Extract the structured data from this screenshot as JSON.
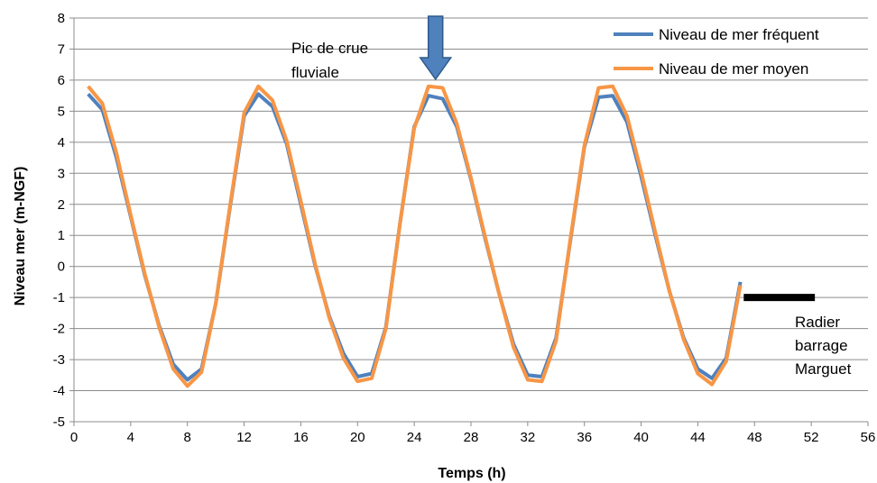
{
  "chart_data": {
    "type": "line",
    "xlabel": "Temps (h)",
    "ylabel": "Niveau mer (m-NGF)",
    "xlim": [
      0,
      56
    ],
    "ylim": [
      -5,
      8
    ],
    "x_ticks": [
      "0",
      "4",
      "8",
      "12",
      "16",
      "20",
      "24",
      "28",
      "32",
      "36",
      "40",
      "44",
      "48",
      "52",
      "56"
    ],
    "y_ticks": [
      "8",
      "7",
      "6",
      "5",
      "4",
      "3",
      "2",
      "1",
      "0",
      "-1",
      "-2",
      "-3",
      "-4",
      "-5"
    ],
    "grid": "horizontal",
    "legend_position": "top-right",
    "x": [
      1,
      2,
      3,
      4,
      5,
      6,
      7,
      8,
      9,
      10,
      11,
      12,
      13,
      14,
      15,
      16,
      17,
      18,
      19,
      20,
      21,
      22,
      23,
      24,
      25,
      26,
      27,
      28,
      29,
      30,
      31,
      32,
      33,
      34,
      35,
      36,
      37,
      38,
      39,
      40,
      41,
      42,
      43,
      44,
      45,
      46,
      47
    ],
    "series": [
      {
        "name": "Niveau de mer fréquent",
        "color": "#4f81bd",
        "values": [
          5.55,
          5.05,
          3.5,
          1.6,
          -0.3,
          -1.9,
          -3.15,
          -3.65,
          -3.3,
          -1.2,
          1.9,
          4.85,
          5.55,
          5.15,
          3.95,
          2.0,
          0.05,
          -1.6,
          -2.8,
          -3.55,
          -3.45,
          -1.95,
          1.4,
          4.5,
          5.5,
          5.4,
          4.5,
          2.8,
          0.9,
          -0.9,
          -2.5,
          -3.5,
          -3.55,
          -2.3,
          0.8,
          3.85,
          5.45,
          5.5,
          4.65,
          2.9,
          1.0,
          -0.8,
          -2.3,
          -3.3,
          -3.6,
          -2.95,
          -0.5
        ]
      },
      {
        "name": "Niveau de mer moyen",
        "color": "#f79646",
        "values": [
          5.8,
          5.25,
          3.65,
          1.65,
          -0.25,
          -1.95,
          -3.3,
          -3.85,
          -3.4,
          -1.2,
          1.95,
          4.95,
          5.8,
          5.35,
          4.05,
          2.1,
          0.1,
          -1.65,
          -2.95,
          -3.7,
          -3.6,
          -2.0,
          1.4,
          4.45,
          5.8,
          5.75,
          4.6,
          2.85,
          0.95,
          -0.9,
          -2.6,
          -3.65,
          -3.7,
          -2.4,
          0.85,
          3.9,
          5.75,
          5.8,
          4.85,
          3.05,
          1.1,
          -0.8,
          -2.35,
          -3.45,
          -3.8,
          -3.05,
          -0.6
        ]
      }
    ],
    "annotations": [
      {
        "text": [
          "Pic de crue",
          "fluviale"
        ],
        "arrow_x": 25.5
      },
      {
        "text": [
          "Radier",
          "barrage",
          "Marguet"
        ],
        "level_y": -1,
        "x_range": [
          48,
          52
        ]
      }
    ],
    "annotation_colors": {
      "arrow": "#4f81bd",
      "radier": "#000000"
    }
  }
}
